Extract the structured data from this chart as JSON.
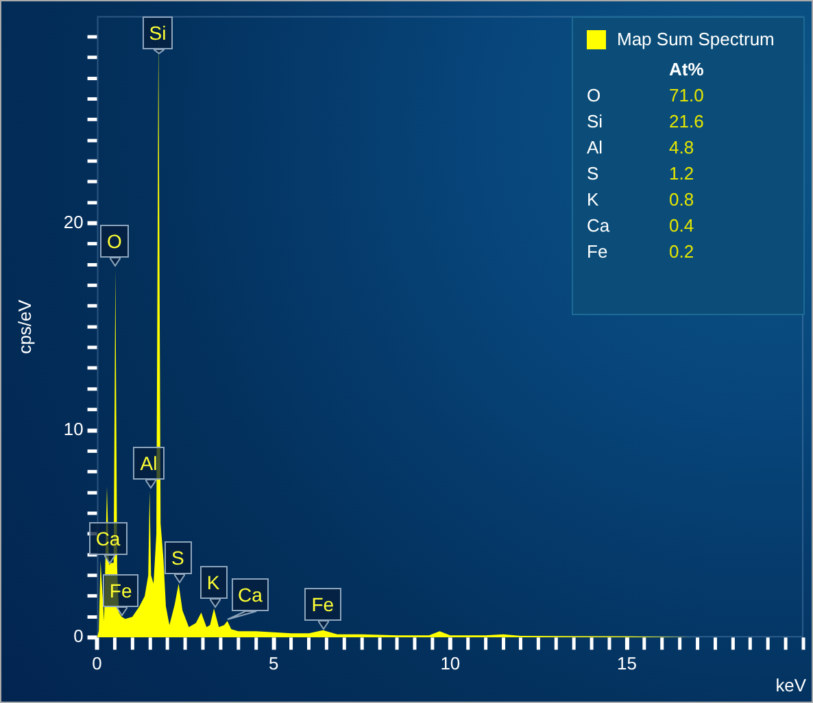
{
  "chart_data": [
    {
      "type": "area",
      "xlabel": "keV",
      "ylabel": "cps/eV",
      "x": [
        0,
        0.05,
        0.1,
        0.2,
        0.28,
        0.34,
        0.4,
        0.47,
        0.52,
        0.57,
        0.62,
        0.7,
        0.8,
        1.0,
        1.2,
        1.35,
        1.45,
        1.49,
        1.53,
        1.6,
        1.68,
        1.74,
        1.8,
        1.88,
        1.95,
        2.05,
        2.2,
        2.31,
        2.42,
        2.6,
        2.8,
        2.95,
        3.1,
        3.2,
        3.31,
        3.45,
        3.6,
        3.69,
        3.8,
        4.0,
        4.5,
        5.0,
        5.5,
        6.0,
        6.4,
        6.8,
        7.5,
        8.5,
        9.4,
        9.7,
        10.0,
        11.0,
        11.5,
        12.0,
        13.5,
        15.0,
        16.5,
        17.0
      ],
      "series": [
        {
          "name": "Map Sum Spectrum",
          "color": "#ffff00",
          "values": [
            0,
            0.3,
            3.7,
            0.8,
            7.3,
            3.5,
            3.6,
            3.6,
            17.8,
            3.4,
            1.2,
            1.0,
            0.9,
            1.0,
            1.5,
            2.0,
            3.0,
            7.1,
            3.0,
            2.6,
            5.0,
            29.2,
            5.5,
            3.8,
            1.5,
            0.6,
            1.6,
            2.6,
            1.3,
            0.5,
            0.7,
            1.2,
            0.5,
            0.6,
            1.4,
            0.5,
            0.6,
            0.8,
            0.4,
            0.3,
            0.3,
            0.25,
            0.2,
            0.2,
            0.35,
            0.15,
            0.15,
            0.1,
            0.1,
            0.3,
            0.1,
            0.1,
            0.15,
            0.08,
            0.06,
            0.05,
            0.02,
            0
          ]
        }
      ],
      "xlim": [
        0,
        20
      ],
      "xticks": [
        0,
        {
          "value": 0.5,
          "label": null
        },
        {
          "value": 1,
          "label": null
        },
        {
          "value": 1.5,
          "label": null
        },
        {
          "value": 2,
          "label": null
        },
        {
          "value": 2.5,
          "label": null
        },
        {
          "value": 3,
          "label": null
        },
        {
          "value": 3.5,
          "label": null
        },
        {
          "value": 4,
          "label": null
        },
        {
          "value": 4.5,
          "label": null
        },
        5,
        {
          "value": 5.5,
          "label": null
        },
        {
          "value": 6,
          "label": null
        },
        {
          "value": 6.5,
          "label": null
        },
        {
          "value": 7,
          "label": null
        },
        {
          "value": 7.5,
          "label": null
        },
        {
          "value": 8,
          "label": null
        },
        {
          "value": 8.5,
          "label": null
        },
        {
          "value": 9,
          "label": null
        },
        {
          "value": 9.5,
          "label": null
        },
        10,
        {
          "value": 10.5,
          "label": null
        },
        {
          "value": 11,
          "label": null
        },
        {
          "value": 11.5,
          "label": null
        },
        {
          "value": 12,
          "label": null
        },
        {
          "value": 12.5,
          "label": null
        },
        {
          "value": 13,
          "label": null
        },
        {
          "value": 13.5,
          "label": null
        },
        {
          "value": 14,
          "label": null
        },
        {
          "value": 14.5,
          "label": null
        },
        15,
        {
          "value": 15.5,
          "label": null
        },
        {
          "value": 16,
          "label": null
        },
        {
          "value": 16.5,
          "label": null
        },
        {
          "value": 17,
          "label": null
        },
        {
          "value": 17.5,
          "label": null
        },
        {
          "value": 18,
          "label": null
        },
        {
          "value": 18.5,
          "label": null
        },
        {
          "value": 19,
          "label": null
        },
        {
          "value": 19.5,
          "label": null
        },
        {
          "value": 20,
          "label": null
        }
      ],
      "ylim": [
        0,
        30
      ],
      "yticks": [
        0,
        {
          "value": 1,
          "label": null
        },
        {
          "value": 2,
          "label": null
        },
        {
          "value": 3,
          "label": null
        },
        {
          "value": 4,
          "label": null
        },
        {
          "value": 5,
          "label": null
        },
        {
          "value": 6,
          "label": null
        },
        {
          "value": 7,
          "label": null
        },
        {
          "value": 8,
          "label": null
        },
        {
          "value": 9,
          "label": null
        },
        10,
        {
          "value": 11,
          "label": null
        },
        {
          "value": 12,
          "label": null
        },
        {
          "value": 13,
          "label": null
        },
        {
          "value": 14,
          "label": null
        },
        {
          "value": 15,
          "label": null
        },
        {
          "value": 16,
          "label": null
        },
        {
          "value": 17,
          "label": null
        },
        {
          "value": 18,
          "label": null
        },
        {
          "value": 19,
          "label": null
        },
        20,
        {
          "value": 21,
          "label": null
        },
        {
          "value": 22,
          "label": null
        },
        {
          "value": 23,
          "label": null
        },
        {
          "value": 24,
          "label": null
        },
        {
          "value": 25,
          "label": null
        },
        {
          "value": 26,
          "label": null
        },
        {
          "value": 27,
          "label": null
        },
        {
          "value": 28,
          "label": null
        },
        {
          "value": 29,
          "label": null
        }
      ],
      "grid": false,
      "legend": "top right",
      "annotations": [
        {
          "text": "Si",
          "x": 1.74,
          "y": 29.2
        },
        {
          "text": "O",
          "x": 0.52,
          "y": 17.8
        },
        {
          "text": "Al",
          "x": 1.49,
          "y": 7.1
        },
        {
          "text": "Ca",
          "x": 0.34,
          "y": 3.5
        },
        {
          "text": "Fe",
          "x": 0.7,
          "y": 1.0
        },
        {
          "text": "S",
          "x": 2.31,
          "y": 2.6
        },
        {
          "text": "K",
          "x": 3.31,
          "y": 1.4
        },
        {
          "text": "Ca",
          "x": 3.69,
          "y": 0.8
        },
        {
          "text": "Fe",
          "x": 6.4,
          "y": 0.35
        }
      ]
    },
    {
      "type": "other",
      "title": "At%",
      "categories": [
        "O",
        "Si",
        "Al",
        "S",
        "K",
        "Ca",
        "Fe"
      ],
      "values": [
        71.0,
        21.6,
        4.8,
        1.2,
        0.8,
        0.4,
        0.2
      ],
      "value_labels": [
        "71.0",
        "21.6",
        "4.8",
        "1.2",
        "0.8",
        "0.4",
        "0.2"
      ],
      "color": "#e6e600"
    }
  ]
}
